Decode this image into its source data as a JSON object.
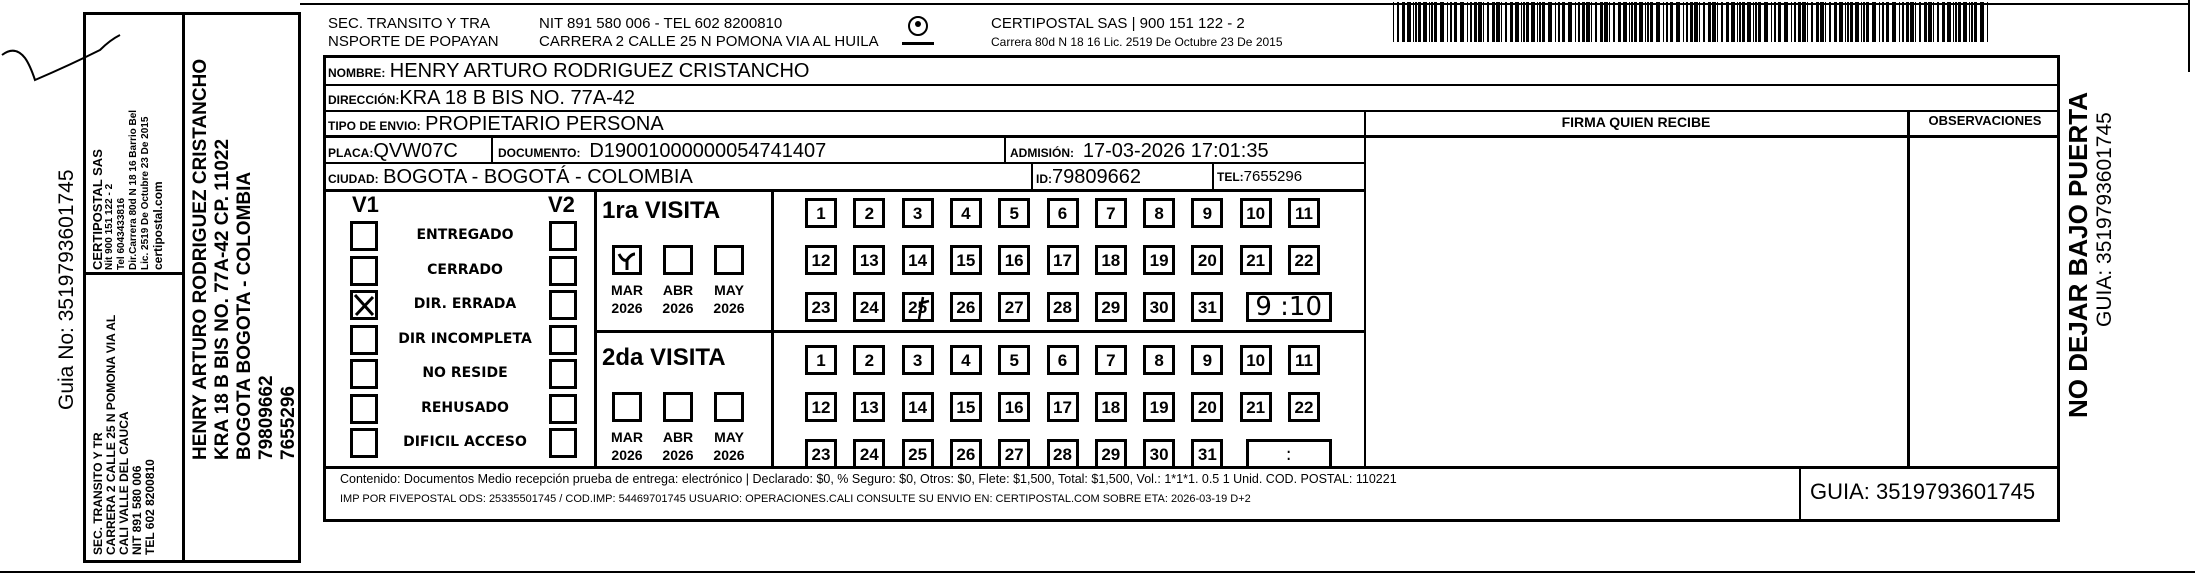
{
  "guide_number": "3519793601745",
  "stub": {
    "guia_label": "Guia No: 3519793601745",
    "company_lines": [
      "CERTIPOSTAL SAS",
      "Nit 900 151 122 - 2",
      "Tel 6043433816",
      "Dir.Carrera 80d N 18 16 Barrio Bel",
      "Lic. 2519 De Octubre 23 De 2015"
    ],
    "company_web": "certipostal.com",
    "sender_lines": [
      "SEC. TRANSITO Y TR",
      "CARRERA 2 CALLE 25 N POMONA VIA AL",
      "CALI VALLE DEL CAUCA",
      "NIT 891 580 006",
      "TEL 602 8200810"
    ],
    "recipient_lines": [
      "HENRY ARTURO RODRIGUEZ CRISTANCHO",
      "KRA 18 B BIS NO. 77A-42 CP. 11022",
      "BOGOTA BOGOTA - COLOMBIA",
      "79809662",
      "7655296"
    ]
  },
  "header": {
    "sender": [
      "SEC. TRANSITO Y TRA",
      "NSPORTE DE POPAYAN"
    ],
    "sender_contact": [
      "NIT 891 580 006 - TEL 602 8200810",
      "CARRERA 2 CALLE 25 N POMONA VIA AL HUILA"
    ],
    "company": [
      "CERTIPOSTAL SAS | 900 151 122 - 2",
      "Carrera 80d N 18 16  Lic. 2519 De Octubre 23 De 2015"
    ]
  },
  "fields": {
    "nombre_label": "NOMBRE:",
    "nombre": "HENRY ARTURO RODRIGUEZ CRISTANCHO",
    "direccion_label": "DIRECCIÓN:",
    "direccion": "KRA 18 B BIS NO. 77A-42",
    "tipo_label": "TIPO DE ENVIO:",
    "tipo": "PROPIETARIO PERSONA",
    "placa_label": "PLACA:",
    "placa": "QVW07C",
    "documento_label": "DOCUMENTO:",
    "documento": "D19001000000054741407",
    "admision_label": "ADMISIÓN:",
    "admision": "17-03-2026 17:01:35",
    "ciudad_label": "CIUDAD:",
    "ciudad": "BOGOTA - BOGOTÁ - COLOMBIA",
    "id_label": "ID:",
    "id": "79809662",
    "tel_label": "TEL:",
    "tel": "7655296"
  },
  "signature": {
    "firma_label": "FIRMA QUIEN RECIBE",
    "observaciones_label": "OBSERVACIONES"
  },
  "status": {
    "v1_label": "V1",
    "v2_label": "V2",
    "options": [
      {
        "label": "ENTREGADO",
        "v1": false,
        "v2": false
      },
      {
        "label": "CERRADO",
        "v1": false,
        "v2": false
      },
      {
        "label": "DIR. ERRADA",
        "v1": true,
        "v2": false
      },
      {
        "label": "DIR INCOMPLETA",
        "v1": false,
        "v2": false
      },
      {
        "label": "NO RESIDE",
        "v1": false,
        "v2": false
      },
      {
        "label": "REHUSADO",
        "v1": false,
        "v2": false
      },
      {
        "label": "DIFICIL ACCESO",
        "v1": false,
        "v2": false
      }
    ]
  },
  "visits": [
    {
      "title": "1ra VISITA",
      "months": [
        {
          "m": "MAR",
          "y": "2026",
          "checked": true
        },
        {
          "m": "ABR",
          "y": "2026",
          "checked": false
        },
        {
          "m": "MAY",
          "y": "2026",
          "checked": false
        }
      ],
      "marked_day": 25,
      "time": "9 :10"
    },
    {
      "title": "2da VISITA",
      "months": [
        {
          "m": "MAR",
          "y": "2026",
          "checked": false
        },
        {
          "m": "ABR",
          "y": "2026",
          "checked": false
        },
        {
          "m": "MAY",
          "y": "2026",
          "checked": false
        }
      ],
      "marked_day": null,
      "time": ":"
    }
  ],
  "days": [
    "1",
    "2",
    "3",
    "4",
    "5",
    "6",
    "7",
    "8",
    "9",
    "10",
    "11",
    "12",
    "13",
    "14",
    "15",
    "16",
    "17",
    "18",
    "19",
    "20",
    "21",
    "22",
    "23",
    "24",
    "25",
    "26",
    "27",
    "28",
    "29",
    "30",
    "31"
  ],
  "footer": {
    "content": "Contenido: Documentos Medio recepción prueba de entrega: electrónico | Declarado: $0, % Seguro: $0, Otros: $0, Flete: $1,500, Total: $1,500, Vol.: 1*1*1. 0.5  1 Unid. COD. POSTAL: 110221",
    "imp": "IMP POR FIVEPOSTAL ODS: 25335501745 / COD.IMP: 54469701745 USUARIO: OPERACIONES.CALI CONSULTE SU ENVIO EN: CERTIPOSTAL.COM SOBRE ETA: 2026-03-19 D+2",
    "guia": "GUIA: 3519793601745"
  },
  "side": {
    "warning": "NO DEJAR BAJO PUERTA",
    "guia": "GUIA: 3519793601745"
  }
}
